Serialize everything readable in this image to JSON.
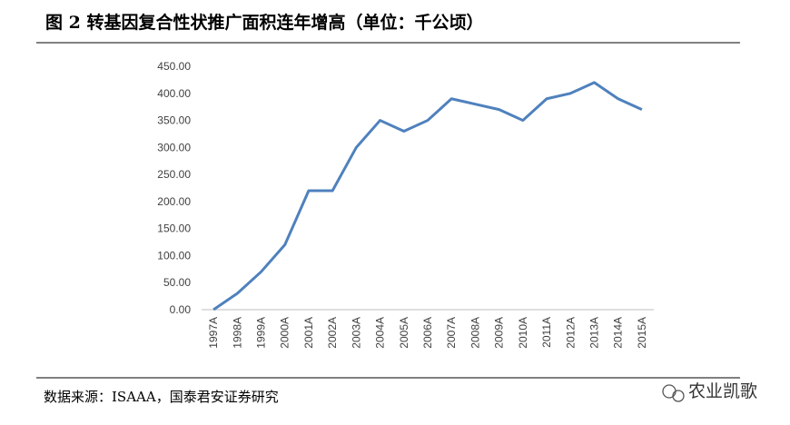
{
  "chart_data": {
    "type": "line",
    "title": "图 2 转基因复合性状推广面积连年增高（单位：千公顷）",
    "source": "数据来源：ISAAA，国泰君安证券研究",
    "watermark": "农业凯歌",
    "categories": [
      "1997A",
      "1998A",
      "1999A",
      "2000A",
      "2001A",
      "2002A",
      "2003A",
      "2004A",
      "2005A",
      "2006A",
      "2007A",
      "2008A",
      "2009A",
      "2010A",
      "2011A",
      "2012A",
      "2013A",
      "2014A",
      "2015A"
    ],
    "values": [
      0,
      30,
      70,
      120,
      220,
      220,
      300,
      350,
      330,
      350,
      390,
      380,
      370,
      350,
      390,
      400,
      420,
      390,
      370
    ],
    "color": "#4f81bd",
    "ylim": [
      0,
      450
    ],
    "yticks": [
      {
        "value": 0,
        "label": "0.00"
      },
      {
        "value": 50,
        "label": "50.00"
      },
      {
        "value": 100,
        "label": "100.00"
      },
      {
        "value": 150,
        "label": "150.00"
      },
      {
        "value": 200,
        "label": "200.00"
      },
      {
        "value": 250,
        "label": "250.00"
      },
      {
        "value": 300,
        "label": "300.00"
      },
      {
        "value": 350,
        "label": "350.00"
      },
      {
        "value": 400,
        "label": "400.00"
      },
      {
        "value": 450,
        "label": "450.00"
      }
    ],
    "grid": false
  }
}
